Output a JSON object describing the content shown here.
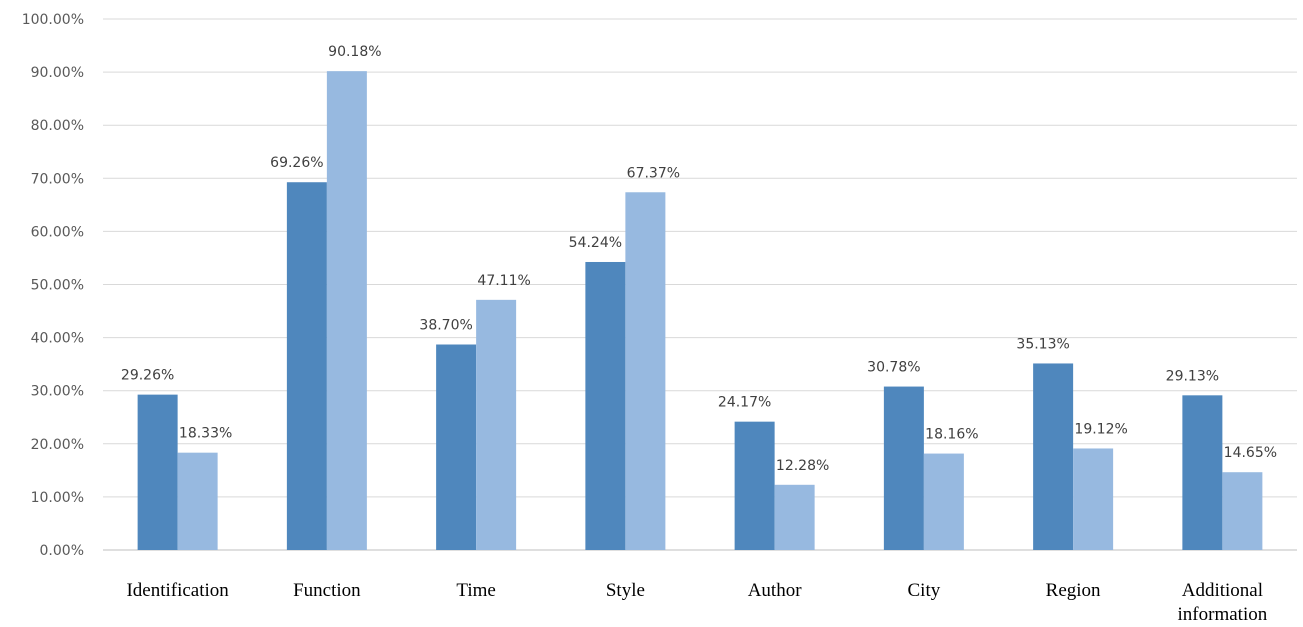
{
  "chart_data": {
    "type": "bar",
    "title": "",
    "xlabel": "",
    "ylabel": "",
    "categories": [
      "Identification",
      "Function",
      "Time",
      "Style",
      "Author",
      "City",
      "Region",
      "Additional information"
    ],
    "series": [
      {
        "values": [
          29.26,
          69.26,
          38.7,
          54.24,
          24.17,
          30.78,
          35.13,
          29.13
        ],
        "color": "#4f87bd"
      },
      {
        "values": [
          18.33,
          90.18,
          47.11,
          67.37,
          12.28,
          18.16,
          19.12,
          14.65
        ],
        "color": "#97b9e0"
      }
    ],
    "ylim": [
      0,
      100
    ],
    "yticks": [
      "0.00%",
      "10.00%",
      "20.00%",
      "30.00%",
      "40.00%",
      "50.00%",
      "60.00%",
      "70.00%",
      "80.00%",
      "90.00%",
      "100.00%"
    ],
    "value_labels": [
      [
        "29.26%",
        "69.26%",
        "38.70%",
        "54.24%",
        "24.17%",
        "30.78%",
        "35.13%",
        "29.13%"
      ],
      [
        "18.33%",
        "90.18%",
        "47.11%",
        "67.37%",
        "12.28%",
        "18.16%",
        "19.12%",
        "14.65%"
      ]
    ],
    "grid": true,
    "legend": "none"
  }
}
